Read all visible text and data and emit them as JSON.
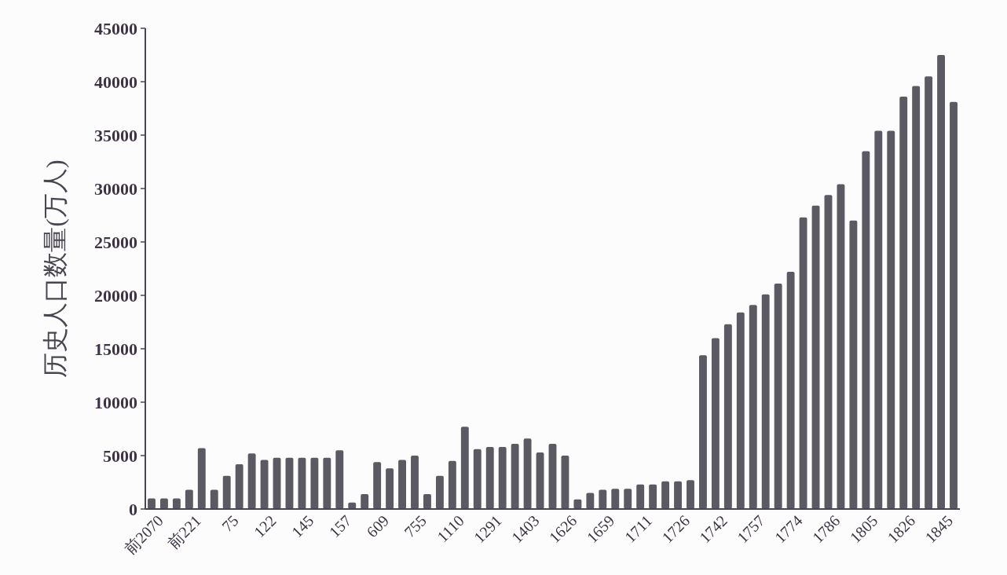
{
  "chart_data": {
    "type": "bar",
    "ylabel": "历史人口数量(万人)",
    "categories": [
      "前2070",
      null,
      null,
      "前221",
      null,
      null,
      "75",
      null,
      null,
      "122",
      null,
      null,
      "145",
      null,
      null,
      "157",
      null,
      null,
      "609",
      null,
      null,
      "755",
      null,
      null,
      "1110",
      null,
      null,
      "1291",
      null,
      null,
      "1403",
      null,
      null,
      "1626",
      null,
      null,
      "1659",
      null,
      null,
      "1711",
      null,
      null,
      "1726",
      null,
      null,
      "1742",
      null,
      null,
      "1757",
      null,
      null,
      "1774",
      null,
      null,
      "1786",
      null,
      null,
      "1805",
      null,
      null,
      "1826",
      null,
      null,
      "1845",
      null
    ],
    "values": [
      1000,
      1000,
      1000,
      1800,
      5700,
      1800,
      3100,
      4200,
      5200,
      4600,
      4800,
      4800,
      4800,
      4800,
      4800,
      5500,
      600,
      1400,
      4400,
      3800,
      4600,
      5000,
      1400,
      3100,
      4500,
      7700,
      5600,
      5800,
      5800,
      6100,
      6600,
      5300,
      6100,
      5000,
      900,
      1500,
      1800,
      1900,
      1900,
      2300,
      2300,
      2600,
      2600,
      2700,
      14400,
      16000,
      17300,
      18400,
      19100,
      20100,
      21100,
      22200,
      27300,
      28400,
      29400,
      30400,
      27000,
      33500,
      35400,
      35400,
      38600,
      39600,
      40500,
      42500,
      38100
    ],
    "color": "#5b5a62",
    "ylim": [
      0,
      45000
    ],
    "yticks": [
      0,
      5000,
      10000,
      15000,
      20000,
      25000,
      30000,
      35000,
      40000,
      45000
    ]
  }
}
